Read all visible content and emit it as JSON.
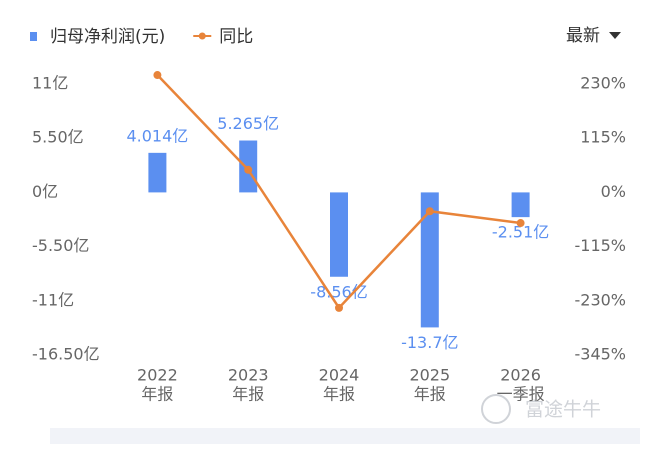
{
  "chart_data": {
    "type": "bar_line",
    "categories": [
      [
        "2022",
        "年报"
      ],
      [
        "2023",
        "年报"
      ],
      [
        "2024",
        "年报"
      ],
      [
        "2025",
        "年报"
      ],
      [
        "2026",
        "一季报"
      ]
    ],
    "series": [
      {
        "name": "归母净利润(元)",
        "type": "bar",
        "color": "#5b8ff0",
        "values": [
          4.014,
          5.265,
          -8.56,
          -13.7,
          -2.51
        ],
        "value_labels": [
          "4.014亿",
          "5.265亿",
          "-8.56亿",
          "-13.7亿",
          "-2.51亿"
        ]
      },
      {
        "name": "同比",
        "type": "line",
        "axis": "y2",
        "color": "#e8843a",
        "values": [
          249,
          48,
          -245,
          -40,
          -65
        ]
      }
    ],
    "ylim": [
      -16.5,
      11
    ],
    "yticks": [
      {
        "value": 11,
        "label": "11亿"
      },
      {
        "value": 5.5,
        "label": "5.50亿"
      },
      {
        "value": 0,
        "label": "0亿"
      },
      {
        "value": -5.5,
        "label": "-5.50亿"
      },
      {
        "value": -11,
        "label": "-11亿"
      },
      {
        "value": -16.5,
        "label": "-16.50亿"
      }
    ],
    "y2lim": [
      -345,
      230
    ],
    "y2ticks": [
      {
        "value": 230,
        "label": "230%"
      },
      {
        "value": 115,
        "label": "115%"
      },
      {
        "value": 0,
        "label": "0%"
      },
      {
        "value": -115,
        "label": "-115%"
      },
      {
        "value": -230,
        "label": "-230%"
      },
      {
        "value": -345,
        "label": "-345%"
      }
    ],
    "grid": false,
    "dropdown": "最新",
    "watermark": "富途牛牛"
  }
}
